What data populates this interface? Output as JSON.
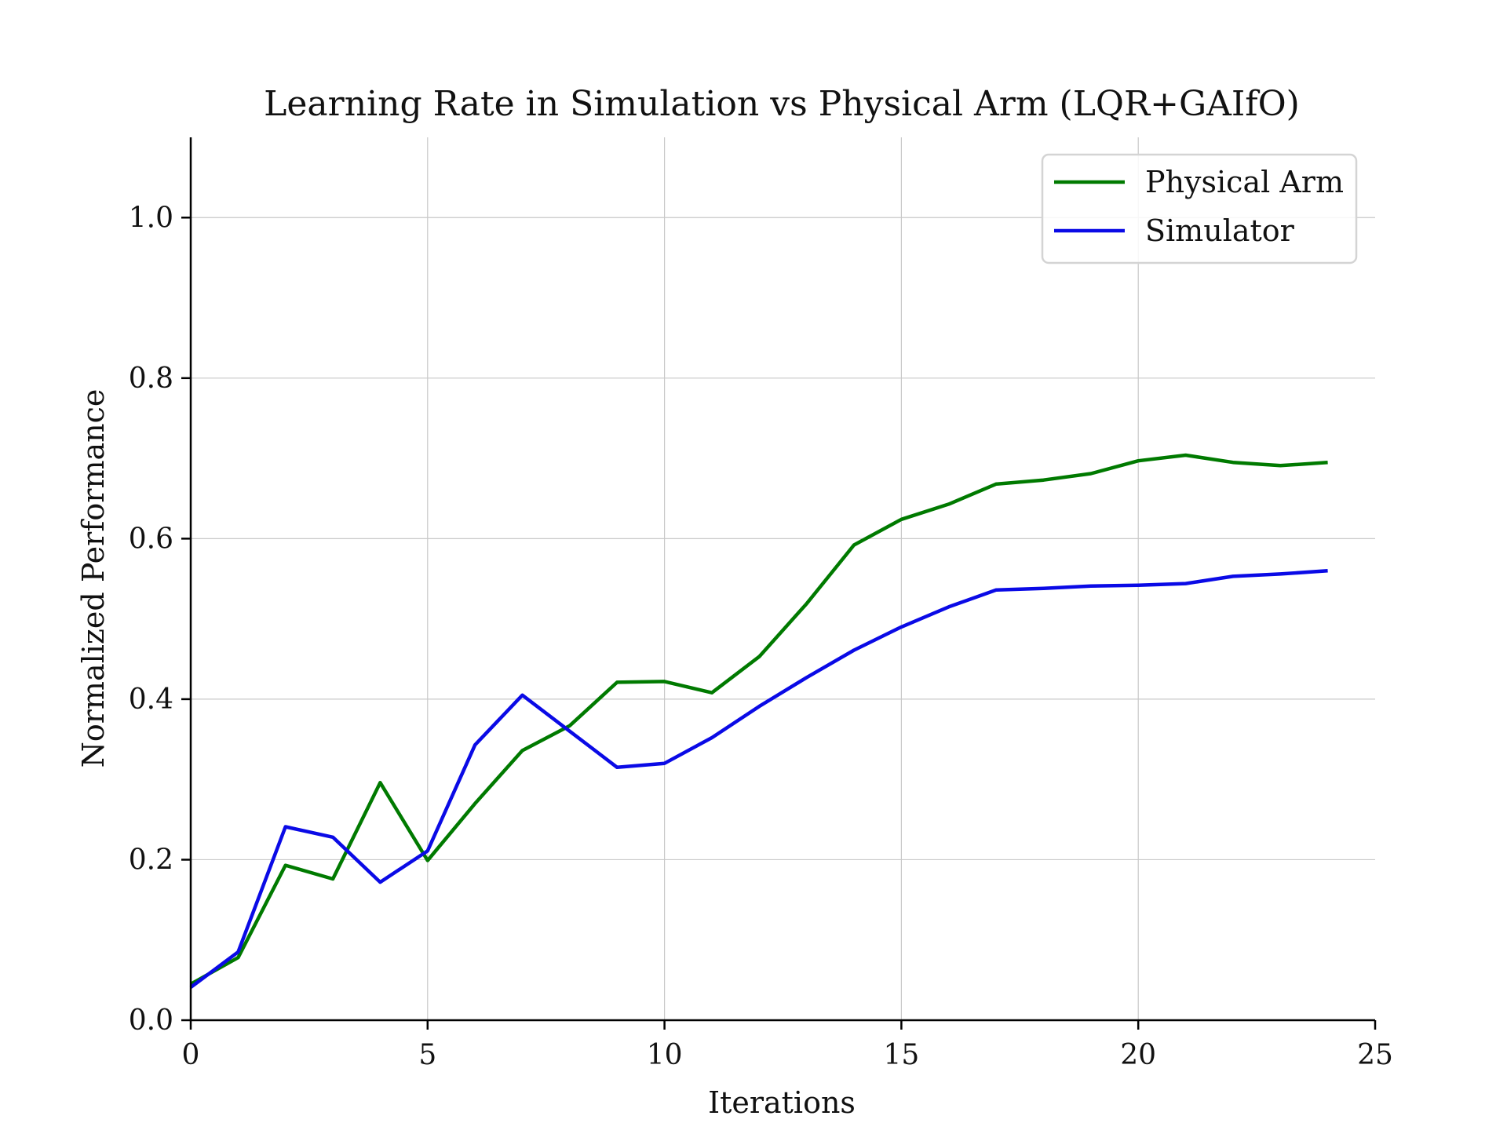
{
  "chart_data": {
    "type": "line",
    "title": "Learning Rate in Simulation vs Physical Arm (LQR+GAIfO)",
    "xlabel": "Iterations",
    "ylabel": "Normalized Performance",
    "xlim": [
      0,
      25
    ],
    "ylim": [
      0,
      1.1
    ],
    "xticks": [
      0,
      5,
      10,
      15,
      20,
      25
    ],
    "xtick_labels": [
      "0",
      "5",
      "10",
      "15",
      "20",
      "25"
    ],
    "yticks": [
      0,
      0.2,
      0.4,
      0.6,
      0.8,
      1.0
    ],
    "ytick_labels": [
      "0.0",
      "0.2",
      "0.4",
      "0.6",
      "0.8",
      "1.0"
    ],
    "grid": true,
    "legend_position": "top-right",
    "x": [
      0,
      1,
      2,
      3,
      4,
      5,
      6,
      7,
      8,
      9,
      10,
      11,
      12,
      13,
      14,
      15,
      16,
      17,
      18,
      19,
      20,
      21,
      22,
      23,
      24
    ],
    "series": [
      {
        "name": "Physical Arm",
        "color": "#007a00",
        "values": [
          0.045,
          0.078,
          0.193,
          0.176,
          0.296,
          0.199,
          0.27,
          0.336,
          0.367,
          0.421,
          0.422,
          0.408,
          0.453,
          0.519,
          0.592,
          0.624,
          0.643,
          0.668,
          0.673,
          0.681,
          0.697,
          0.704,
          0.695,
          0.691,
          0.695
        ]
      },
      {
        "name": "Simulator",
        "color": "#0a0ae6",
        "values": [
          0.041,
          0.085,
          0.241,
          0.228,
          0.172,
          0.211,
          0.343,
          0.405,
          0.36,
          0.315,
          0.32,
          0.352,
          0.391,
          0.427,
          0.461,
          0.49,
          0.515,
          0.536,
          0.538,
          0.541,
          0.542,
          0.544,
          0.553,
          0.556,
          0.56
        ]
      }
    ]
  }
}
